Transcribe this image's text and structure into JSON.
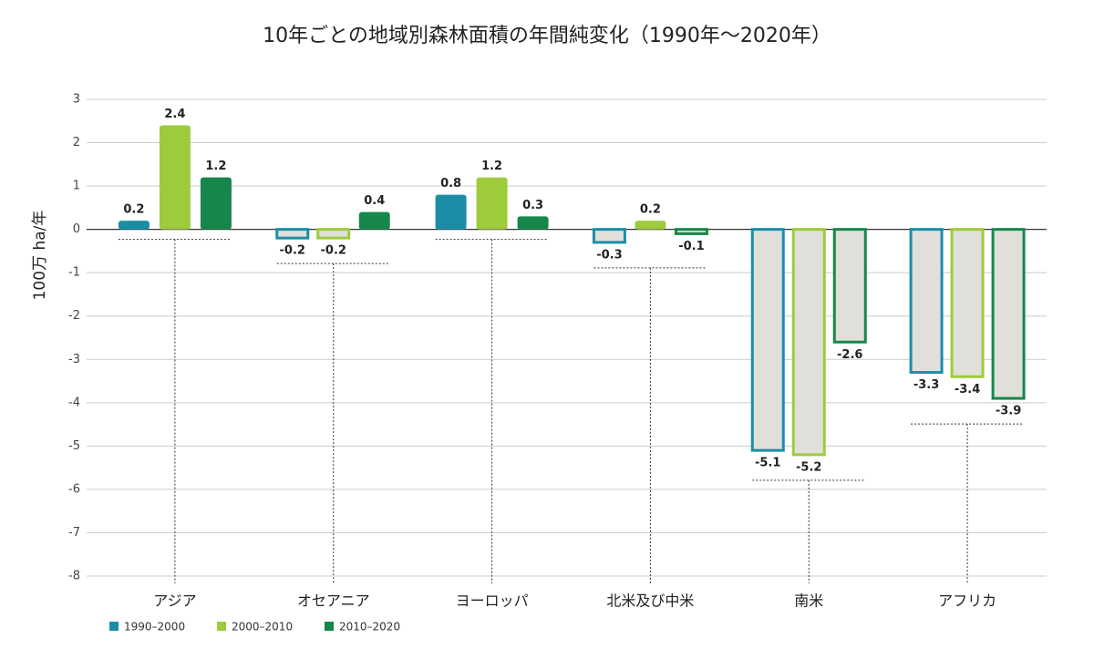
{
  "chart_data": {
    "type": "bar",
    "title": "10年ごとの地域別森林面積の年間純変化（1990年～2020年）",
    "y_label": "100万 ha/年",
    "categories": [
      "アジア",
      "オセアニア",
      "ヨーロッパ",
      "北米及び中米",
      "南米",
      "アフリカ"
    ],
    "series": [
      {
        "name": "1990–2000",
        "color": "#1b8ea6",
        "values": [
          0.2,
          -0.2,
          0.8,
          -0.3,
          -5.1,
          -3.3
        ]
      },
      {
        "name": "2000–2010",
        "color": "#9dcb3c",
        "values": [
          2.4,
          -0.2,
          1.2,
          0.2,
          -5.2,
          -3.4
        ]
      },
      {
        "name": "2010–2020",
        "color": "#16874a",
        "values": [
          1.2,
          0.4,
          0.3,
          -0.1,
          -2.6,
          -3.9
        ]
      }
    ],
    "ylim": [
      -8,
      3
    ],
    "yticks": [
      -8,
      -7,
      -6,
      -5,
      -4,
      -3,
      -2,
      -1,
      0,
      1,
      2,
      3
    ],
    "grid": true,
    "legend": "bottom-left"
  }
}
